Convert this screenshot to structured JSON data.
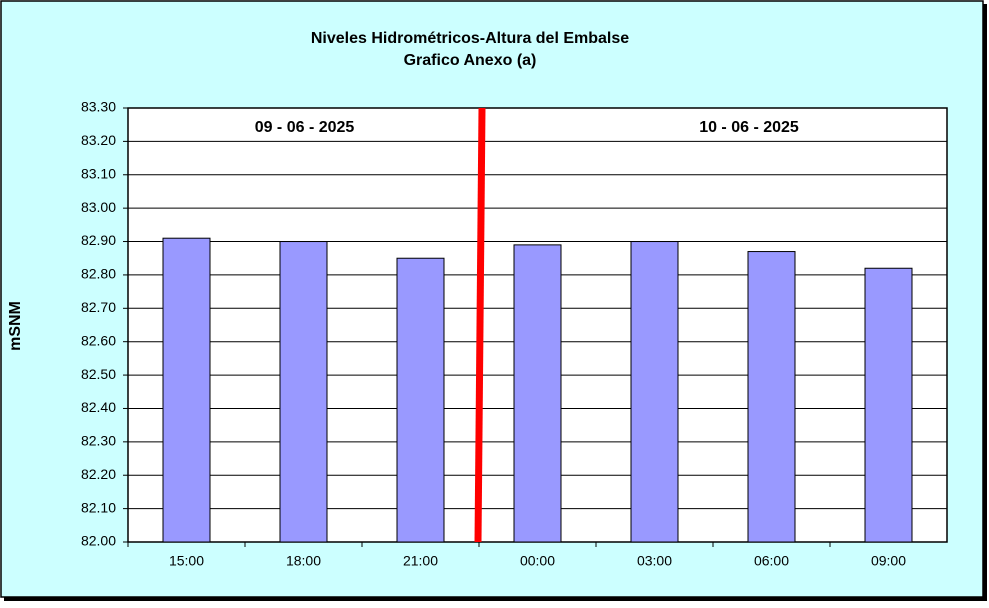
{
  "chart_data": {
    "type": "bar",
    "title": "Niveles Hidrométricos-Altura del Embalse",
    "subtitle": "Grafico Anexo (a)",
    "y_label": "mSNM",
    "annotations": [
      "09 - 06 - 2025",
      "10 - 06 - 2025"
    ],
    "categories": [
      "15:00",
      "18:00",
      "21:00",
      "00:00",
      "03:00",
      "06:00",
      "09:00"
    ],
    "values": [
      82.91,
      82.9,
      82.85,
      82.89,
      82.9,
      82.87,
      82.82
    ],
    "color": "#9999ff",
    "ylim": [
      82.0,
      83.3
    ],
    "yticks": [
      {
        "value": 82.0,
        "label": "82.00"
      },
      {
        "value": 82.1,
        "label": "82.10"
      },
      {
        "value": 82.2,
        "label": "82.20"
      },
      {
        "value": 82.3,
        "label": "82.30"
      },
      {
        "value": 82.4,
        "label": "82.40"
      },
      {
        "value": 82.5,
        "label": "82.50"
      },
      {
        "value": 82.6,
        "label": "82.60"
      },
      {
        "value": 82.7,
        "label": "82.70"
      },
      {
        "value": 82.8,
        "label": "82.80"
      },
      {
        "value": 82.9,
        "label": "82.90"
      },
      {
        "value": 83.0,
        "label": "83.00"
      },
      {
        "value": 83.1,
        "label": "83.10"
      },
      {
        "value": 83.2,
        "label": "83.20"
      },
      {
        "value": 83.3,
        "label": "83.30"
      }
    ],
    "grid": true
  }
}
